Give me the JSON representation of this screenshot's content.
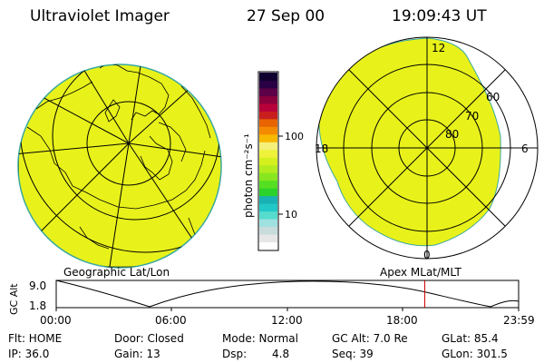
{
  "header": {
    "instrument": "Ultraviolet Imager",
    "date": "27 Sep 00",
    "time": "19:09:43 UT"
  },
  "colorbar": {
    "unit_label": "photon cm⁻²s⁻¹",
    "tick_100": "100",
    "tick_10": "10",
    "colors": [
      "#ffffff",
      "#e6e6e6",
      "#c8dcdc",
      "#9fe0e0",
      "#55dccc",
      "#22c8c8",
      "#19b2b4",
      "#2ad22a",
      "#55de22",
      "#88e61e",
      "#b2ec1e",
      "#d4f01e",
      "#eef23a",
      "#f4f07a",
      "#f7b800",
      "#f48a00",
      "#e86400",
      "#c81e1e",
      "#b8003a",
      "#8a003c",
      "#5c0048",
      "#2a0045",
      "#100030"
    ]
  },
  "polar_plot": {
    "labels": {
      "top": "12",
      "bottom": "0",
      "left": "18",
      "right": "6"
    },
    "rings": [
      "60",
      "70",
      "80"
    ],
    "fill_color": "#e8f21a"
  },
  "geo_plot": {
    "fill_color": "#e8f21a",
    "title": "Geographic Lat/Lon"
  },
  "timeline": {
    "left_title": "Geographic Lat/Lon",
    "right_title": "Apex MLat/MLT",
    "axis_label": "GC Alt",
    "ymax": "9.0",
    "ymin": "1.8",
    "ticks": [
      "00:00",
      "06:00",
      "12:00",
      "18:00",
      "23:59"
    ],
    "marker_color": "#cc0000",
    "marker_fraction": 0.797
  },
  "status": {
    "row1": [
      "Flt: HOME",
      "Door: Closed",
      "Mode: Normal",
      "GC Alt: 7.0 Re",
      "GLat:  85.4"
    ],
    "row2": [
      "IP: 36.0",
      "Gain: 13",
      "Dsp:",
      "4.8",
      "Seq: 39",
      "GLon: 301.5"
    ]
  }
}
